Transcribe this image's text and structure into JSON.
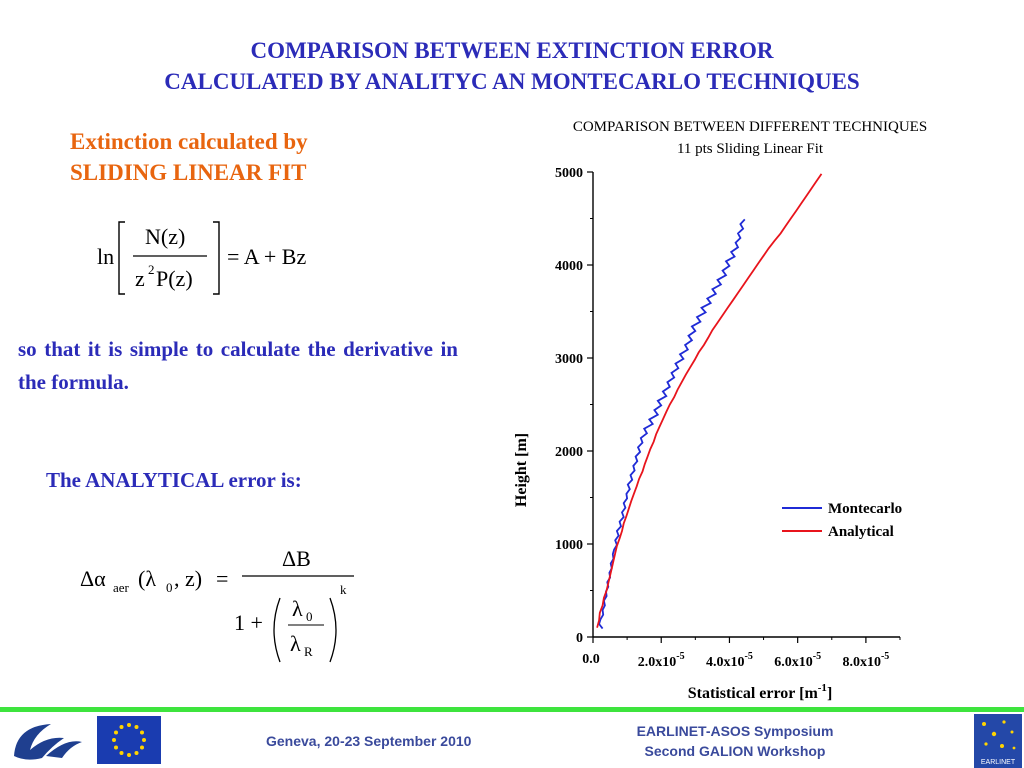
{
  "slide": {
    "title_line1": "COMPARISON BETWEEN EXTINCTION ERROR",
    "title_line2": "CALCULATED BY ANALITYC AN MONTECARLO TECHNIQUES",
    "subhead_line1": "Extinction calculated by",
    "subhead_line2": "SLIDING LINEAR FIT",
    "paragraph": "so that it is simple to calculate the derivative in the formula.",
    "analytical_label": "The ANALYTICAL error is:"
  },
  "formula1": {
    "ln": "ln",
    "numerator": "N(z)",
    "denominator_z": "z",
    "denominator_exp": "2",
    "denominator_rest": "P(z)",
    "rhs": "= A + Bz"
  },
  "formula2": {
    "lhs_delta_alpha": "Δα",
    "lhs_sub": "aer",
    "lhs_args_open": "(λ",
    "lhs_args_sub": "0",
    "lhs_args_close": ", z)",
    "equals": "=",
    "numerator": "ΔB",
    "one_plus": "1 +",
    "inner_num": "λ",
    "inner_num_sub": "0",
    "inner_den": "λ",
    "inner_den_sub": "R",
    "exponent": "k"
  },
  "footer": {
    "left": "Geneva, 20-23 September 2010",
    "right_line1": "EARLINET-ASOS Symposium",
    "right_line2": "Second GALION Workshop",
    "earlinet_logo_text": "EARLINET"
  },
  "colors": {
    "title_blue": "#2b2bb8",
    "subhead_orange": "#e8650f",
    "footer_green": "#3ee43e",
    "montecarlo": "#1f2bd6",
    "analytical": "#e8141c"
  },
  "chart_data": {
    "type": "line",
    "title": "COMPARISON BETWEEN  DIFFERENT TECHNIQUES",
    "subtitle": "11 pts Sliding Linear Fit",
    "xlabel": "Statistical error [m",
    "xlabel_sup": "-1",
    "xlabel_end": "]",
    "ylabel": "Height [m]",
    "xlim": [
      0,
      9e-05
    ],
    "ylim": [
      0,
      5000
    ],
    "x_ticks": [
      {
        "value": 0,
        "mant": "0.0",
        "exp": ""
      },
      {
        "value": 2e-05,
        "mant": "2.0x10",
        "exp": "-5"
      },
      {
        "value": 4e-05,
        "mant": "4.0x10",
        "exp": "-5"
      },
      {
        "value": 6e-05,
        "mant": "6.0x10",
        "exp": "-5"
      },
      {
        "value": 8e-05,
        "mant": "8.0x10",
        "exp": "-5"
      }
    ],
    "y_ticks": [
      0,
      1000,
      2000,
      3000,
      4000,
      5000
    ],
    "legend_position": "lower-right",
    "series": [
      {
        "name": "Montecarlo",
        "x": [
          2.8e-06,
          1.8e-06,
          2.2e-06,
          3e-06,
          2.8e-06,
          3.5e-06,
          3.2e-06,
          4e-06,
          3.8e-06,
          4.5e-06,
          4.2e-06,
          5e-06,
          4.8e-06,
          5.5e-06,
          5.2e-06,
          6e-06,
          5.8e-06,
          6.2e-06,
          7e-06,
          6.5e-06,
          7.5e-06,
          7e-06,
          8.2e-06,
          7.8e-06,
          9e-06,
          8.5e-06,
          9.5e-06,
          9e-06,
          1e-05,
          9.8e-06,
          1.08e-05,
          1.02e-05,
          1.15e-05,
          1.1e-05,
          1.22e-05,
          1.18e-05,
          1.3e-05,
          1.25e-05,
          1.38e-05,
          1.32e-05,
          1.45e-05,
          1.4e-05,
          1.58e-05,
          1.5e-05,
          1.75e-05,
          1.65e-05,
          1.9e-05,
          1.8e-05,
          2e-05,
          1.9e-05,
          2.15e-05,
          2.05e-05,
          2.25e-05,
          2.18e-05,
          2.38e-05,
          2.3e-05,
          2.5e-05,
          2.42e-05,
          2.65e-05,
          2.55e-05,
          2.78e-05,
          2.7e-05,
          2.9e-05,
          2.8e-05,
          3e-05,
          2.9e-05,
          3.15e-05,
          3.05e-05,
          3.3e-05,
          3.18e-05,
          3.45e-05,
          3.35e-05,
          3.6e-05,
          3.5e-05,
          3.75e-05,
          3.65e-05,
          3.9e-05,
          3.8e-05,
          4e-05,
          3.9e-05,
          4.15e-05,
          4.05e-05,
          4.25e-05,
          4.18e-05,
          4.32e-05,
          4.25e-05,
          4.4e-05,
          4.32e-05,
          4.45e-05
        ],
        "y": [
          90,
          140,
          190,
          240,
          290,
          340,
          390,
          440,
          490,
          540,
          590,
          640,
          690,
          740,
          790,
          840,
          890,
          940,
          990,
          1040,
          1090,
          1140,
          1190,
          1240,
          1290,
          1340,
          1390,
          1440,
          1490,
          1540,
          1590,
          1640,
          1690,
          1740,
          1790,
          1840,
          1890,
          1940,
          1990,
          2040,
          2090,
          2140,
          2190,
          2240,
          2290,
          2340,
          2390,
          2440,
          2490,
          2540,
          2590,
          2640,
          2690,
          2740,
          2790,
          2840,
          2890,
          2940,
          2990,
          3040,
          3090,
          3140,
          3190,
          3240,
          3290,
          3340,
          3390,
          3440,
          3490,
          3540,
          3590,
          3640,
          3690,
          3740,
          3790,
          3840,
          3890,
          3940,
          3990,
          4040,
          4090,
          4140,
          4190,
          4240,
          4290,
          4340,
          4390,
          4440,
          4490
        ]
      },
      {
        "name": "Analytical",
        "x": [
          1.2e-06,
          1.8e-06,
          2e-06,
          2.8e-06,
          3.2e-06,
          4e-06,
          4.5e-06,
          5e-06,
          5.5e-06,
          6e-06,
          6.5e-06,
          7e-06,
          7.8e-06,
          8.5e-06,
          9e-06,
          9.8e-06,
          1.05e-05,
          1.12e-05,
          1.2e-05,
          1.28e-05,
          1.35e-05,
          1.45e-05,
          1.52e-05,
          1.6e-05,
          1.68e-05,
          1.78e-05,
          1.85e-05,
          1.95e-05,
          2.05e-05,
          2.15e-05,
          2.25e-05,
          2.38e-05,
          2.48e-05,
          2.6e-05,
          2.72e-05,
          2.85e-05,
          2.98e-05,
          3.1e-05,
          3.25e-05,
          3.38e-05,
          3.5e-05,
          3.65e-05,
          3.8e-05,
          3.95e-05,
          4.1e-05,
          4.25e-05,
          4.4e-05,
          4.55e-05,
          4.7e-05,
          4.85e-05,
          5e-05,
          5.15e-05,
          5.32e-05,
          5.5e-05,
          5.65e-05,
          5.8e-05,
          5.95e-05,
          6.1e-05,
          6.25e-05,
          6.4e-05,
          6.55e-05,
          6.7e-05
        ],
        "y": [
          100,
          180,
          260,
          340,
          420,
          500,
          580,
          660,
          740,
          820,
          900,
          980,
          1060,
          1140,
          1220,
          1300,
          1380,
          1460,
          1540,
          1620,
          1700,
          1780,
          1860,
          1940,
          2020,
          2100,
          2180,
          2260,
          2340,
          2420,
          2500,
          2580,
          2660,
          2740,
          2820,
          2900,
          2980,
          3060,
          3140,
          3220,
          3300,
          3380,
          3460,
          3540,
          3620,
          3700,
          3780,
          3860,
          3940,
          4020,
          4100,
          4180,
          4260,
          4340,
          4420,
          4500,
          4580,
          4660,
          4740,
          4820,
          4900,
          4980
        ]
      }
    ]
  }
}
